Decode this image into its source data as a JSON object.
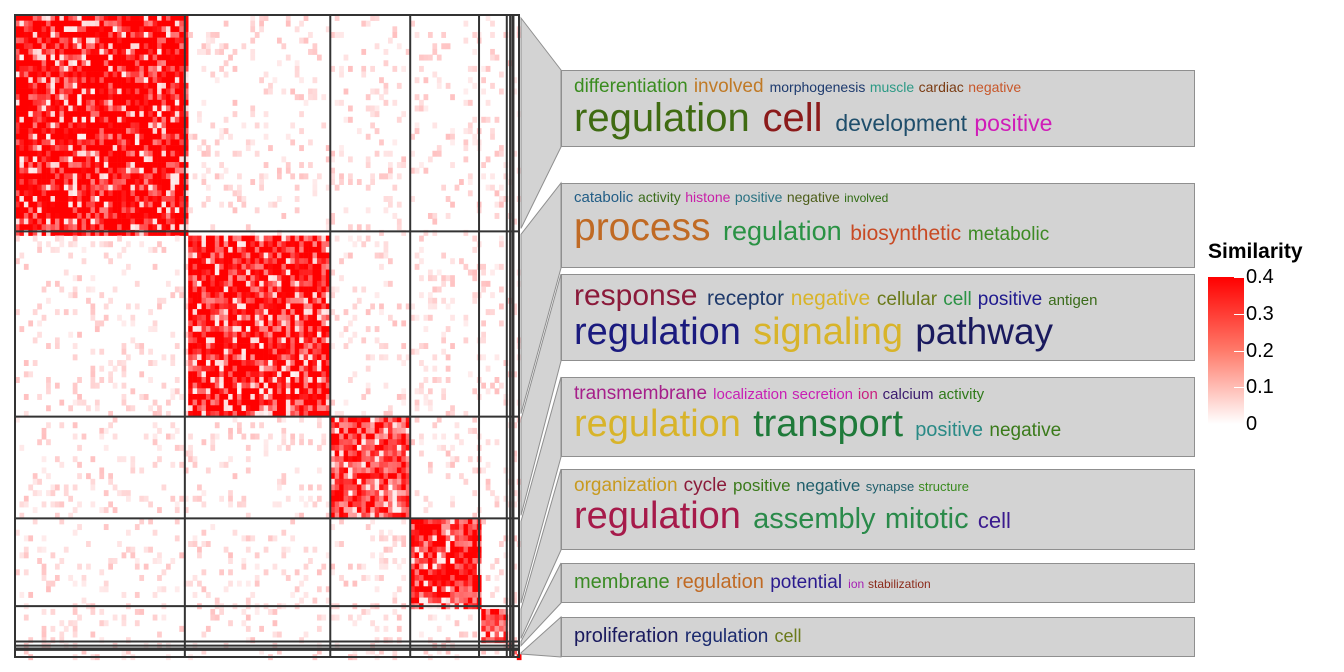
{
  "chart_data": {
    "type": "heatmap",
    "title": "",
    "xlabel": "",
    "ylabel": "",
    "cluster_sizes": [
      153,
      131,
      72,
      62,
      25,
      3,
      2,
      1,
      5
    ],
    "color_scale": {
      "title": "Similarity",
      "min": 0,
      "max": 0.4,
      "ticks": [
        "0.4",
        "0.3",
        "0.2",
        "0.1",
        "0"
      ],
      "colors": [
        "#ffffff",
        "#ff0000"
      ]
    },
    "word_clouds": [
      {
        "cluster": 1,
        "lines": [
          [
            {
              "text": "differentiation",
              "size": 19,
              "color": "#3a8c1f"
            },
            {
              "text": "involved",
              "size": 19,
              "color": "#c07a26"
            },
            {
              "text": "morphogenesis",
              "size": 14,
              "color": "#1d3a6e"
            },
            {
              "text": "muscle",
              "size": 14,
              "color": "#2c9a85"
            },
            {
              "text": "cardiac",
              "size": 14,
              "color": "#7a3b12"
            },
            {
              "text": "negative",
              "size": 14,
              "color": "#c8572a"
            }
          ],
          [
            {
              "text": "regulation",
              "size": 40,
              "color": "#3f6b12"
            },
            {
              "text": "cell",
              "size": 40,
              "color": "#8b1a1a"
            },
            {
              "text": "development",
              "size": 23,
              "color": "#1f4e6b"
            },
            {
              "text": "positive",
              "size": 23,
              "color": "#d01cb8"
            }
          ]
        ]
      },
      {
        "cluster": 2,
        "lines": [
          [
            {
              "text": "catabolic",
              "size": 15,
              "color": "#215d86"
            },
            {
              "text": "activity",
              "size": 14,
              "color": "#3a6b1a"
            },
            {
              "text": "histone",
              "size": 14,
              "color": "#c81fa8"
            },
            {
              "text": "positive",
              "size": 14,
              "color": "#2a7282"
            },
            {
              "text": "negative",
              "size": 14,
              "color": "#4d5e1a"
            },
            {
              "text": "involved",
              "size": 12,
              "color": "#2f6b12"
            }
          ],
          [
            {
              "text": "process",
              "size": 39,
              "color": "#c06a24"
            },
            {
              "text": "regulation",
              "size": 27,
              "color": "#2a9244"
            },
            {
              "text": "biosynthetic",
              "size": 21,
              "color": "#c84a24"
            },
            {
              "text": "metabolic",
              "size": 19,
              "color": "#3d8a24"
            }
          ]
        ]
      },
      {
        "cluster": 3,
        "lines": [
          [
            {
              "text": "response",
              "size": 30,
              "color": "#8b1a3a"
            },
            {
              "text": "receptor",
              "size": 21,
              "color": "#1f3a6b"
            },
            {
              "text": "negative",
              "size": 21,
              "color": "#d8b42a"
            },
            {
              "text": "cellular",
              "size": 19,
              "color": "#6b7a1a"
            },
            {
              "text": "cell",
              "size": 19,
              "color": "#2a9244"
            },
            {
              "text": "positive",
              "size": 19,
              "color": "#1f1a8e"
            },
            {
              "text": "antigen",
              "size": 15,
              "color": "#3a6b1a"
            }
          ],
          [
            {
              "text": "regulation",
              "size": 38,
              "color": "#1a1a7e"
            },
            {
              "text": "signaling",
              "size": 38,
              "color": "#d8b42a"
            },
            {
              "text": "pathway",
              "size": 37,
              "color": "#1a1a5e"
            }
          ]
        ]
      },
      {
        "cluster": 4,
        "lines": [
          [
            {
              "text": "transmembrane",
              "size": 19,
              "color": "#a61f8a"
            },
            {
              "text": "localization",
              "size": 15,
              "color": "#c81fb4"
            },
            {
              "text": "secretion",
              "size": 15,
              "color": "#c81fb4"
            },
            {
              "text": "ion",
              "size": 15,
              "color": "#c81f7e"
            },
            {
              "text": "calcium",
              "size": 15,
              "color": "#3a1a6e"
            },
            {
              "text": "activity",
              "size": 15,
              "color": "#2f7a1a"
            }
          ],
          [
            {
              "text": "regulation",
              "size": 38,
              "color": "#d8b42a"
            },
            {
              "text": "transport",
              "size": 38,
              "color": "#1f7a3a"
            },
            {
              "text": "positive",
              "size": 20,
              "color": "#2a8a86"
            },
            {
              "text": "negative",
              "size": 19,
              "color": "#3a7a1a"
            }
          ]
        ]
      },
      {
        "cluster": 5,
        "lines": [
          [
            {
              "text": "organization",
              "size": 19,
              "color": "#c89a1f"
            },
            {
              "text": "cycle",
              "size": 19,
              "color": "#8b1a3a"
            },
            {
              "text": "positive",
              "size": 17,
              "color": "#3a7a1a"
            },
            {
              "text": "negative",
              "size": 17,
              "color": "#1f5e6b"
            },
            {
              "text": "synapse",
              "size": 13,
              "color": "#1f5e6b"
            },
            {
              "text": "structure",
              "size": 13,
              "color": "#3a8a1f"
            }
          ],
          [
            {
              "text": "regulation",
              "size": 38,
              "color": "#a61a4a"
            },
            {
              "text": "assembly",
              "size": 29,
              "color": "#2a8a4a"
            },
            {
              "text": "mitotic",
              "size": 29,
              "color": "#2a8a4a"
            },
            {
              "text": "cell",
              "size": 22,
              "color": "#3a1a8e"
            }
          ]
        ]
      },
      {
        "cluster": 6,
        "lines": [
          [
            {
              "text": "membrane",
              "size": 20,
              "color": "#3a8a24"
            },
            {
              "text": "regulation",
              "size": 20,
              "color": "#c06a24"
            },
            {
              "text": "potential",
              "size": 19,
              "color": "#2a1a8e"
            },
            {
              "text": "ion",
              "size": 12,
              "color": "#a61fb4"
            },
            {
              "text": "stabilization",
              "size": 12,
              "color": "#8b2a1a"
            }
          ]
        ]
      },
      {
        "cluster": 9,
        "lines": [
          [
            {
              "text": "proliferation",
              "size": 20,
              "color": "#1a1a5e"
            },
            {
              "text": "regulation",
              "size": 19,
              "color": "#1a2a6e"
            },
            {
              "text": "cell",
              "size": 18,
              "color": "#6b7a1a"
            }
          ]
        ]
      }
    ]
  }
}
